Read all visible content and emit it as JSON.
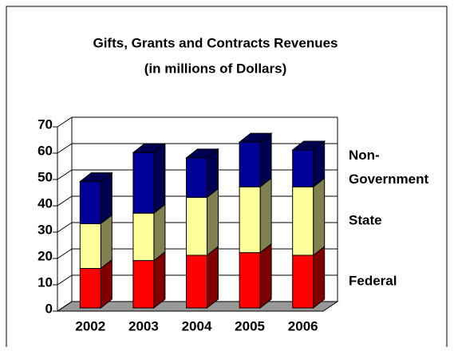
{
  "chart_data": {
    "type": "bar3d-stacked",
    "title": "Gifts, Grants and Contracts Revenues",
    "subtitle": "(in millions of Dollars)",
    "categories": [
      "2002",
      "2003",
      "2004",
      "2005",
      "2006"
    ],
    "series": [
      {
        "name": "Federal",
        "color": "#ff0000",
        "side_color": "#800000",
        "values": [
          15,
          18,
          20,
          21,
          20
        ]
      },
      {
        "name": "State",
        "color": "#ffff99",
        "side_color": "#808050",
        "values": [
          17,
          18,
          22,
          25,
          26
        ]
      },
      {
        "name": "Non-Government",
        "color": "#000099",
        "side_color": "#000050",
        "values": [
          16,
          23,
          15,
          17,
          14
        ]
      }
    ],
    "ylim": [
      0,
      70
    ],
    "yticks": [
      0,
      10,
      20,
      30,
      40,
      50,
      60,
      70
    ],
    "grid": true
  }
}
